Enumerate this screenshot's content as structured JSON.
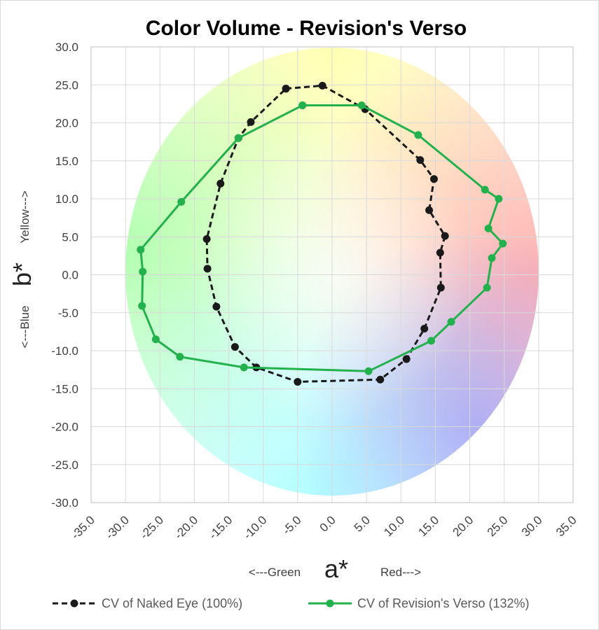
{
  "chart_data": {
    "type": "line",
    "title": "Color Volume - Revision's Verso",
    "x_label": {
      "left": "<---Green",
      "main": "a*",
      "right": "Red--->"
    },
    "y_label": {
      "left": "<---Blue",
      "main": "b*",
      "right": "Yellow--->"
    },
    "xlim": [
      -35,
      35
    ],
    "ylim": [
      -30,
      30
    ],
    "grid": true,
    "xticks": [
      {
        "value": -35,
        "label": "-35.0"
      },
      {
        "value": -30,
        "label": "-30.0"
      },
      {
        "value": -25,
        "label": "-25.0"
      },
      {
        "value": -20,
        "label": "-20.0"
      },
      {
        "value": -15,
        "label": "-15.0"
      },
      {
        "value": -10,
        "label": "-10.0"
      },
      {
        "value": -5,
        "label": "-5.0"
      },
      {
        "value": 0,
        "label": "0.0"
      },
      {
        "value": 5,
        "label": "5.0"
      },
      {
        "value": 10,
        "label": "10.0"
      },
      {
        "value": 15,
        "label": "15.0"
      },
      {
        "value": 20,
        "label": "20.0"
      },
      {
        "value": 25,
        "label": "25.0"
      },
      {
        "value": 30,
        "label": "30.0"
      },
      {
        "value": 35,
        "label": "35.0"
      }
    ],
    "yticks": [
      {
        "value": -30,
        "label": "-30.0"
      },
      {
        "value": -25,
        "label": "-25.0"
      },
      {
        "value": -20,
        "label": "-20.0"
      },
      {
        "value": -15,
        "label": "-15.0"
      },
      {
        "value": -10,
        "label": "-10.0"
      },
      {
        "value": -5,
        "label": "-5.0"
      },
      {
        "value": 0,
        "label": "0.0"
      },
      {
        "value": 5,
        "label": "5.0"
      },
      {
        "value": 10,
        "label": "10.0"
      },
      {
        "value": 15,
        "label": "15.0"
      },
      {
        "value": 20,
        "label": "20.0"
      },
      {
        "value": 25,
        "label": "25.0"
      },
      {
        "value": 30,
        "label": "30.0"
      }
    ],
    "series": [
      {
        "name": "CV of Naked Eye (100%)",
        "color": "#1a1a1a",
        "line_style": "dashed",
        "x": [
          -6.7,
          -1.4,
          4.8,
          12.8,
          14.8,
          14.1,
          16.4,
          15.7,
          15.8,
          13.4,
          10.8,
          7.0,
          -5.0,
          -11.0,
          -14.1,
          -16.8,
          -18.1,
          -18.2,
          -16.2,
          -13.6,
          -11.8,
          -6.7
        ],
        "values": [
          24.5,
          24.9,
          21.8,
          15.1,
          12.6,
          8.5,
          5.1,
          2.9,
          -1.7,
          -7.1,
          -11.1,
          -13.8,
          -14.1,
          -12.2,
          -9.5,
          -4.2,
          0.8,
          4.7,
          12.0,
          18.0,
          20.1,
          24.5
        ]
      },
      {
        "name": "CV of Revision's Verso (132%)",
        "color": "#22b14c",
        "line_style": "solid",
        "x": [
          -4.3,
          4.3,
          12.5,
          22.2,
          24.2,
          22.7,
          24.8,
          23.2,
          22.5,
          17.3,
          14.4,
          5.3,
          -12.8,
          -22.1,
          -25.6,
          -27.6,
          -27.5,
          -27.8,
          -21.9,
          -13.6,
          -4.3
        ],
        "values": [
          22.3,
          22.3,
          18.4,
          11.2,
          10.0,
          6.1,
          4.1,
          2.2,
          -1.7,
          -6.2,
          -8.7,
          -12.7,
          -12.2,
          -10.8,
          -8.5,
          -4.1,
          0.4,
          3.3,
          9.6,
          18.0,
          22.3
        ]
      }
    ]
  }
}
